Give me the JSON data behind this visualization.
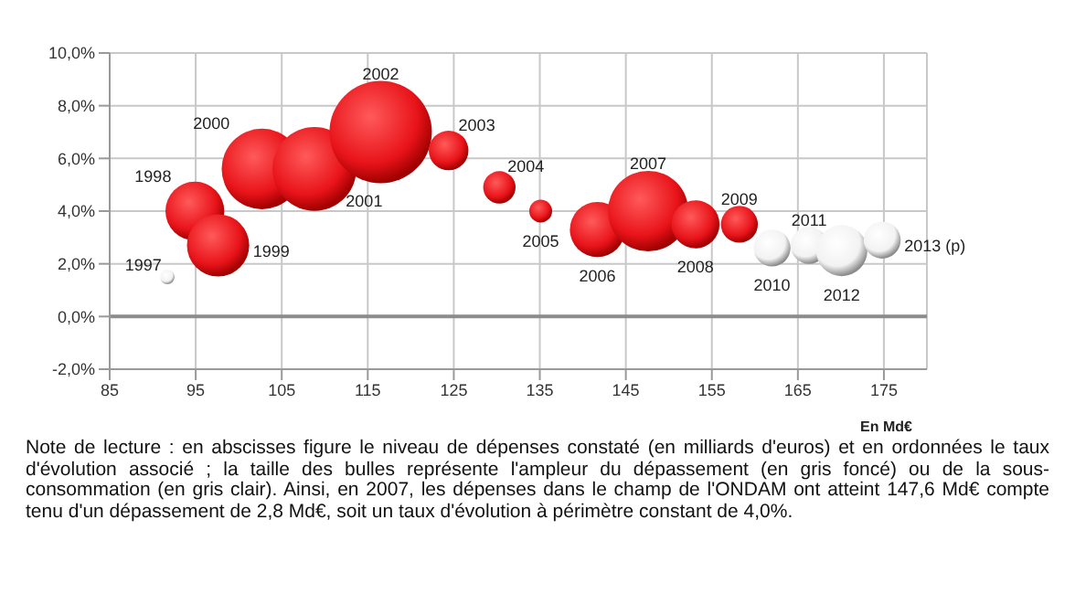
{
  "chart_data": {
    "type": "bubble",
    "xlabel": "En Md€",
    "x": [
      91.7,
      94.9,
      97.6,
      102.7,
      108.8,
      116.5,
      124.4,
      130.3,
      135.1,
      141.7,
      147.6,
      153.1,
      158.2,
      162.0,
      166.3,
      170.1,
      174.8
    ],
    "values": [
      1.5,
      4.0,
      2.7,
      5.6,
      5.6,
      7.0,
      6.3,
      4.9,
      4.0,
      3.3,
      4.0,
      3.5,
      3.5,
      2.6,
      2.7,
      2.5,
      2.9
    ],
    "sizes": [
      0.02,
      0.33,
      0.37,
      0.62,
      0.67,
      1,
      0.15,
      0.1,
      0.05,
      0.29,
      0.62,
      0.22,
      0.13,
      0.13,
      0.13,
      0.25,
      0.13
    ],
    "colors": [
      "#f2f2f2",
      "#e8141a",
      "#e8141a",
      "#e8141a",
      "#e8141a",
      "#e8141a",
      "#e8141a",
      "#e8141a",
      "#e8141a",
      "#e8141a",
      "#e8141a",
      "#e8141a",
      "#e8141a",
      "#f2f2f2",
      "#f2f2f2",
      "#f2f2f2",
      "#f2f2f2"
    ],
    "xlim": [
      85,
      180
    ],
    "xticks": [
      85,
      95,
      105,
      115,
      125,
      135,
      145,
      155,
      165,
      175
    ],
    "ylim": [
      -2,
      10
    ],
    "yticks": [
      {
        "value": -2,
        "label": "-2,0%"
      },
      {
        "value": 0,
        "label": "0,0%"
      },
      {
        "value": 2,
        "label": "2,0%"
      },
      {
        "value": 4,
        "label": "4,0%"
      },
      {
        "value": 6,
        "label": "6,0%"
      },
      {
        "value": 8,
        "label": "8,0%"
      },
      {
        "value": 10,
        "label": "10,0%"
      }
    ],
    "grid": true,
    "ref_lines": [
      {
        "axis": "y",
        "value": 0,
        "color": "#8c8c8c"
      }
    ],
    "annotations": [
      {
        "text": "1997",
        "x": 91.7,
        "y": 1.5
      },
      {
        "text": "1998",
        "x": 94.9,
        "y": 4.0
      },
      {
        "text": "1999",
        "x": 97.6,
        "y": 2.7
      },
      {
        "text": "2000",
        "x": 102.7,
        "y": 5.6
      },
      {
        "text": "2001",
        "x": 108.8,
        "y": 5.6
      },
      {
        "text": "2002",
        "x": 116.5,
        "y": 7.0
      },
      {
        "text": "2003",
        "x": 124.4,
        "y": 6.3
      },
      {
        "text": "2004",
        "x": 130.3,
        "y": 4.9
      },
      {
        "text": "2005",
        "x": 135.1,
        "y": 4.0
      },
      {
        "text": "2006",
        "x": 141.7,
        "y": 3.3
      },
      {
        "text": "2007",
        "x": 147.6,
        "y": 4.0
      },
      {
        "text": "2008",
        "x": 153.1,
        "y": 3.5
      },
      {
        "text": "2009",
        "x": 158.2,
        "y": 3.5
      },
      {
        "text": "2010",
        "x": 162.0,
        "y": 2.6
      },
      {
        "text": "2011",
        "x": 166.3,
        "y": 2.7
      },
      {
        "text": "2012",
        "x": 170.1,
        "y": 2.5
      },
      {
        "text": "2013 (p)",
        "x": 174.8,
        "y": 2.9
      },
      "Note de lecture : en abscisses figure le niveau de dépenses constaté (en milliards d'euros) et en ordonnées le taux d'évolution associé ; la taille des bulles représente l'ampleur du dépassement (en gris foncé) ou de la sous-consommation (en gris clair). Ainsi, en 2007, les dépenses dans le champ de l'ONDAM ont atteint 147,6 Md€ compte tenu d'un dépassement de 2,8 Md€, soit un taux d'évolution à périmètre constant de 4,0%."
    ]
  }
}
